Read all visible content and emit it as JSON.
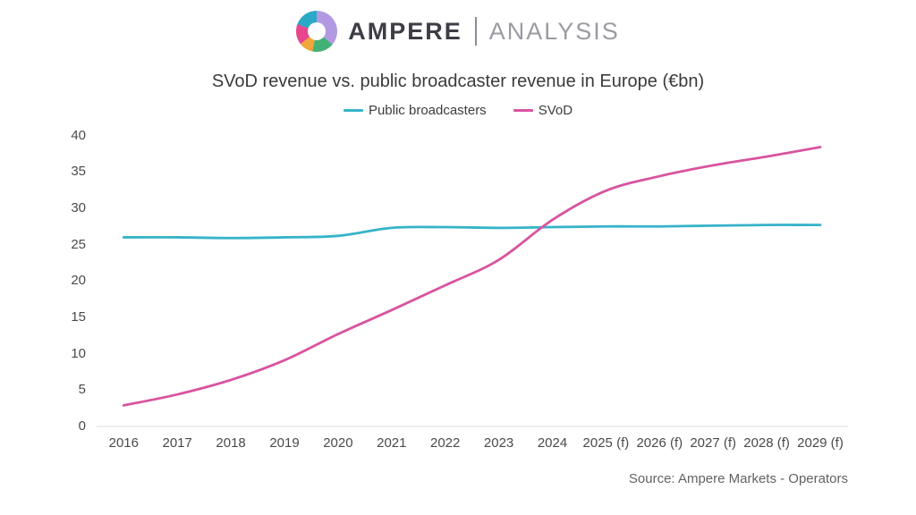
{
  "header": {
    "brand": "AMPERE",
    "suffix": "ANALYSIS"
  },
  "title": "SVoD revenue vs. public broadcaster revenue in Europe (€bn)",
  "source": "Source: Ampere Markets - Operators",
  "logo_segments": {
    "purple": "#b29ae2",
    "green": "#43b176",
    "orange": "#f1a63c",
    "pink": "#e8468f",
    "teal": "#29a9c6"
  },
  "chart_data": {
    "type": "line",
    "categories": [
      "2016",
      "2017",
      "2018",
      "2019",
      "2020",
      "2021",
      "2022",
      "2023",
      "2024",
      "2025 (f)",
      "2026 (f)",
      "2027 (f)",
      "2028 (f)",
      "2029 (f)"
    ],
    "series": [
      {
        "name": "Public broadcasters",
        "color": "#36b3c9",
        "values": [
          26.0,
          26.0,
          25.9,
          26.0,
          26.2,
          27.3,
          27.4,
          27.3,
          27.4,
          27.5,
          27.5,
          27.6,
          27.7,
          27.7
        ]
      },
      {
        "name": "SVoD",
        "color": "#d8549f",
        "values": [
          2.9,
          4.4,
          6.4,
          9.1,
          12.7,
          16.0,
          19.4,
          22.9,
          28.4,
          32.4,
          34.4,
          35.9,
          37.1,
          38.4
        ]
      }
    ],
    "xlabel": "",
    "ylabel": "",
    "ylim": [
      0,
      40
    ],
    "yticks": [
      0,
      5,
      10,
      15,
      20,
      25,
      30,
      35,
      40
    ],
    "grid": false,
    "legend_position": "top",
    "axis_line_color": "#dadada"
  }
}
